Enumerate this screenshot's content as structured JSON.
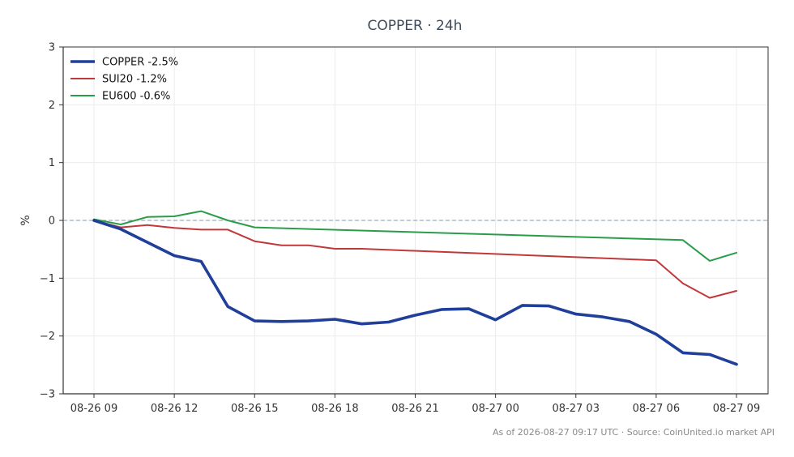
{
  "chart_data": {
    "type": "line",
    "title": "COPPER · 24h",
    "xlabel": "",
    "ylabel": "%",
    "ylim": [
      -3,
      3
    ],
    "yticks": [
      "3",
      "2",
      "1",
      "0",
      "−1",
      "−2",
      "−3"
    ],
    "xticks": [
      "08-26 09",
      "08-26 12",
      "08-26 15",
      "08-26 18",
      "08-26 21",
      "08-27 00",
      "08-27 03",
      "08-27 06",
      "08-27 09"
    ],
    "x_hours": [
      0,
      1,
      2,
      3,
      4,
      5,
      6,
      7,
      8,
      9,
      10,
      11,
      12,
      13,
      14,
      15,
      16,
      17,
      18,
      19,
      20,
      21,
      22,
      23,
      24
    ],
    "grid": true,
    "zero_line": "dashed",
    "legend_position": "top-left",
    "series": [
      {
        "name": "COPPER -2.5%",
        "color": "#1f3f9a",
        "values": [
          0.0,
          -0.15,
          -0.38,
          -0.61,
          -0.71,
          -1.49,
          -1.74,
          -1.75,
          -1.74,
          -1.71,
          -1.79,
          -1.76,
          -1.64,
          -1.54,
          -1.53,
          -1.72,
          -1.47,
          -1.48,
          -1.62,
          -1.67,
          -1.75,
          -1.97,
          -2.29,
          -2.32,
          -2.49
        ]
      },
      {
        "name": "SUI20 -1.2%",
        "color": "#c0383a",
        "values": [
          0.0,
          -0.12,
          -0.08,
          -0.13,
          -0.16,
          -0.16,
          -0.36,
          -0.43,
          -0.43,
          -0.49,
          -0.49,
          null,
          null,
          null,
          null,
          null,
          null,
          null,
          null,
          null,
          null,
          -0.69,
          -1.09,
          -1.34,
          -1.22
        ]
      },
      {
        "name": "EU600 -0.6%",
        "color": "#2a9d4a",
        "values": [
          0.02,
          -0.07,
          0.06,
          0.07,
          0.16,
          0.0,
          -0.12,
          null,
          null,
          null,
          null,
          null,
          null,
          null,
          null,
          null,
          null,
          null,
          null,
          null,
          null,
          null,
          -0.34,
          -0.7,
          -0.56
        ]
      }
    ]
  },
  "footer": "As of 2026-08-27 09:17 UTC · Source: CoinUnited.io market API"
}
